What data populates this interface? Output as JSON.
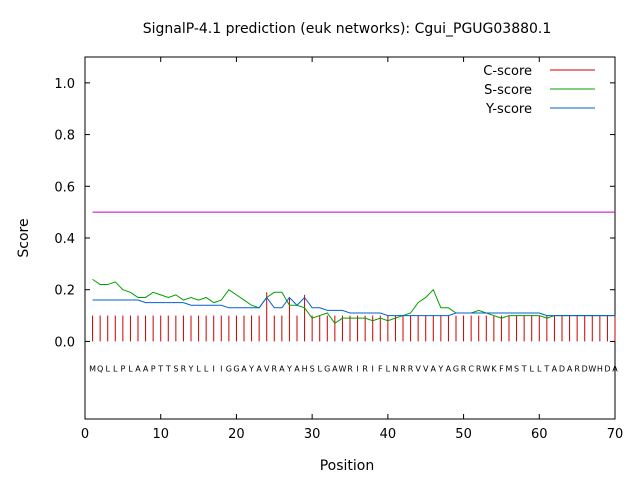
{
  "chart_data": {
    "type": "line",
    "title": "SignalP-4.1 prediction (euk networks): Cgui_PGUG03880.1",
    "xlabel": "Position",
    "ylabel": "Score",
    "xlim": [
      0,
      70
    ],
    "ylim": [
      -0.3,
      1.1
    ],
    "x_ticks": [
      0,
      10,
      20,
      30,
      40,
      50,
      60,
      70
    ],
    "y_ticks": [
      0.0,
      0.2,
      0.4,
      0.6,
      0.8,
      1.0
    ],
    "grid": false,
    "legend_position": "top-right",
    "threshold": {
      "value": 0.5,
      "color": "#c000c0"
    },
    "sequence": "MQLLPLAAPTTSRYLLIIGGAYAVRAYAHSLGAWRIRIFLNRRVVAYAGRCRWKFMSTLLTADARDWHDA",
    "series": [
      {
        "name": "C-score",
        "kind": "impulse",
        "color": "#cc0000",
        "x": [
          1,
          2,
          3,
          4,
          5,
          6,
          7,
          8,
          9,
          10,
          11,
          12,
          13,
          14,
          15,
          16,
          17,
          18,
          19,
          20,
          21,
          22,
          23,
          24,
          25,
          26,
          27,
          28,
          29,
          30,
          31,
          32,
          33,
          34,
          35,
          36,
          37,
          38,
          39,
          40,
          41,
          42,
          43,
          44,
          45,
          46,
          47,
          48,
          49,
          50,
          51,
          52,
          53,
          54,
          55,
          56,
          57,
          58,
          59,
          60,
          61,
          62,
          63,
          64,
          65,
          66,
          67,
          68,
          69,
          70
        ],
        "values": [
          0.1,
          0.1,
          0.1,
          0.1,
          0.1,
          0.1,
          0.1,
          0.1,
          0.1,
          0.1,
          0.1,
          0.1,
          0.1,
          0.1,
          0.1,
          0.1,
          0.1,
          0.1,
          0.1,
          0.1,
          0.1,
          0.1,
          0.1,
          0.19,
          0.1,
          0.1,
          0.17,
          0.1,
          0.18,
          0.1,
          0.1,
          0.1,
          0.1,
          0.1,
          0.1,
          0.1,
          0.1,
          0.1,
          0.1,
          0.1,
          0.1,
          0.1,
          0.1,
          0.1,
          0.1,
          0.1,
          0.1,
          0.1,
          0.1,
          0.1,
          0.1,
          0.1,
          0.1,
          0.1,
          0.1,
          0.1,
          0.1,
          0.1,
          0.1,
          0.1,
          0.1,
          0.1,
          0.1,
          0.1,
          0.1,
          0.1,
          0.1,
          0.1,
          0.1,
          0.1
        ]
      },
      {
        "name": "S-score",
        "kind": "line",
        "color": "#00a000",
        "x": [
          1,
          2,
          3,
          4,
          5,
          6,
          7,
          8,
          9,
          10,
          11,
          12,
          13,
          14,
          15,
          16,
          17,
          18,
          19,
          20,
          21,
          22,
          23,
          24,
          25,
          26,
          27,
          28,
          29,
          30,
          31,
          32,
          33,
          34,
          35,
          36,
          37,
          38,
          39,
          40,
          41,
          42,
          43,
          44,
          45,
          46,
          47,
          48,
          49,
          50,
          51,
          52,
          53,
          54,
          55,
          56,
          57,
          58,
          59,
          60,
          61,
          62,
          63,
          64,
          65,
          66,
          67,
          68,
          69,
          70
        ],
        "values": [
          0.24,
          0.22,
          0.22,
          0.23,
          0.2,
          0.19,
          0.17,
          0.17,
          0.19,
          0.18,
          0.17,
          0.18,
          0.16,
          0.17,
          0.16,
          0.17,
          0.15,
          0.16,
          0.2,
          0.18,
          0.16,
          0.14,
          0.13,
          0.17,
          0.19,
          0.19,
          0.14,
          0.14,
          0.13,
          0.09,
          0.1,
          0.11,
          0.07,
          0.09,
          0.09,
          0.09,
          0.09,
          0.08,
          0.09,
          0.08,
          0.09,
          0.1,
          0.11,
          0.15,
          0.17,
          0.2,
          0.13,
          0.13,
          0.11,
          0.11,
          0.11,
          0.12,
          0.11,
          0.1,
          0.09,
          0.1,
          0.1,
          0.1,
          0.1,
          0.1,
          0.09,
          0.1,
          0.1,
          0.1,
          0.1,
          0.1,
          0.1,
          0.1,
          0.1,
          0.1
        ]
      },
      {
        "name": "Y-score",
        "kind": "line",
        "color": "#0060d0",
        "x": [
          1,
          2,
          3,
          4,
          5,
          6,
          7,
          8,
          9,
          10,
          11,
          12,
          13,
          14,
          15,
          16,
          17,
          18,
          19,
          20,
          21,
          22,
          23,
          24,
          25,
          26,
          27,
          28,
          29,
          30,
          31,
          32,
          33,
          34,
          35,
          36,
          37,
          38,
          39,
          40,
          41,
          42,
          43,
          44,
          45,
          46,
          47,
          48,
          49,
          50,
          51,
          52,
          53,
          54,
          55,
          56,
          57,
          58,
          59,
          60,
          61,
          62,
          63,
          64,
          65,
          66,
          67,
          68,
          69,
          70
        ],
        "values": [
          0.16,
          0.16,
          0.16,
          0.16,
          0.16,
          0.16,
          0.16,
          0.15,
          0.15,
          0.15,
          0.15,
          0.15,
          0.15,
          0.14,
          0.14,
          0.14,
          0.14,
          0.14,
          0.13,
          0.13,
          0.13,
          0.13,
          0.13,
          0.17,
          0.13,
          0.13,
          0.17,
          0.14,
          0.17,
          0.13,
          0.13,
          0.12,
          0.12,
          0.12,
          0.11,
          0.11,
          0.11,
          0.11,
          0.11,
          0.1,
          0.1,
          0.1,
          0.1,
          0.1,
          0.1,
          0.1,
          0.1,
          0.1,
          0.11,
          0.11,
          0.11,
          0.11,
          0.11,
          0.11,
          0.11,
          0.11,
          0.11,
          0.11,
          0.11,
          0.11,
          0.1,
          0.1,
          0.1,
          0.1,
          0.1,
          0.1,
          0.1,
          0.1,
          0.1,
          0.1
        ]
      }
    ]
  }
}
